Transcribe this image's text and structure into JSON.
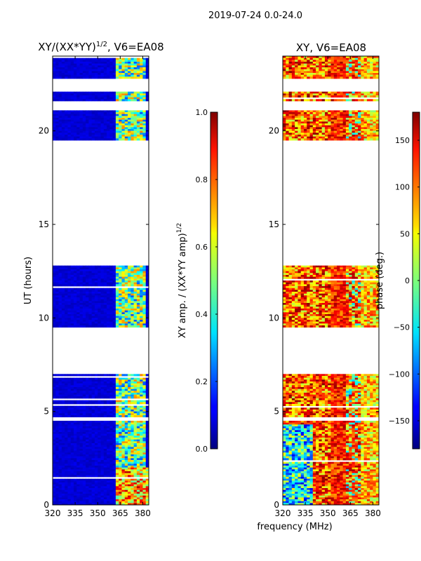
{
  "chart_data": {
    "suptitle": "2019-07-24 0.0-24.0",
    "shared_xlabel": "frequency (MHz)",
    "panels": [
      {
        "type": "heatmap",
        "title": "XY/(XX*YY)",
        "title_sup": "1/2",
        "title_suffix": ", V6=EA08",
        "ylabel": "UT (hours)",
        "xlim": [
          320,
          384
        ],
        "ylim": [
          0,
          24
        ],
        "xticks": [
          "320",
          "335",
          "350",
          "365",
          "380"
        ],
        "xtick_values": [
          320,
          335,
          350,
          365,
          380
        ],
        "yticks": [
          "0",
          "5",
          "10",
          "15",
          "20"
        ],
        "ytick_values": [
          0,
          5,
          10,
          15,
          20
        ],
        "colormap": "jet",
        "data_blocks_hours": [
          [
            0,
            4.5
          ],
          [
            4.7,
            7.0
          ],
          [
            9.5,
            12.8
          ],
          [
            19.5,
            21.1
          ],
          [
            21.6,
            22.1
          ],
          [
            22.8,
            24
          ]
        ],
        "colorbar": {
          "label": "XY amp. / (XX*YY amp)",
          "label_sup": "1/2",
          "range": [
            0.0,
            1.0
          ],
          "ticks": [
            "0.0",
            "0.2",
            "0.4",
            "0.6",
            "0.8",
            "1.0"
          ],
          "tick_values": [
            0.0,
            0.2,
            0.4,
            0.6,
            0.8,
            1.0
          ]
        }
      },
      {
        "type": "heatmap",
        "title": "XY, V6=EA08",
        "xlim": [
          320,
          384
        ],
        "ylim": [
          0,
          24
        ],
        "xticks": [
          "320",
          "335",
          "350",
          "365",
          "380"
        ],
        "xtick_values": [
          320,
          335,
          350,
          365,
          380
        ],
        "yticks": [
          "0",
          "5",
          "10",
          "15",
          "20"
        ],
        "ytick_values": [
          0,
          5,
          10,
          15,
          20
        ],
        "colormap": "jet",
        "data_blocks_hours": [
          [
            0,
            4.5
          ],
          [
            4.7,
            7.0
          ],
          [
            9.5,
            12.8
          ],
          [
            19.5,
            21.1
          ],
          [
            21.6,
            22.1
          ],
          [
            22.8,
            24
          ]
        ],
        "colorbar": {
          "label": "phase (deg.)",
          "range": [
            -180,
            180
          ],
          "ticks": [
            "−150",
            "−100",
            "−50",
            "0",
            "50",
            "100",
            "150"
          ],
          "tick_values": [
            -150,
            -100,
            -50,
            0,
            50,
            100,
            150
          ]
        }
      }
    ]
  }
}
